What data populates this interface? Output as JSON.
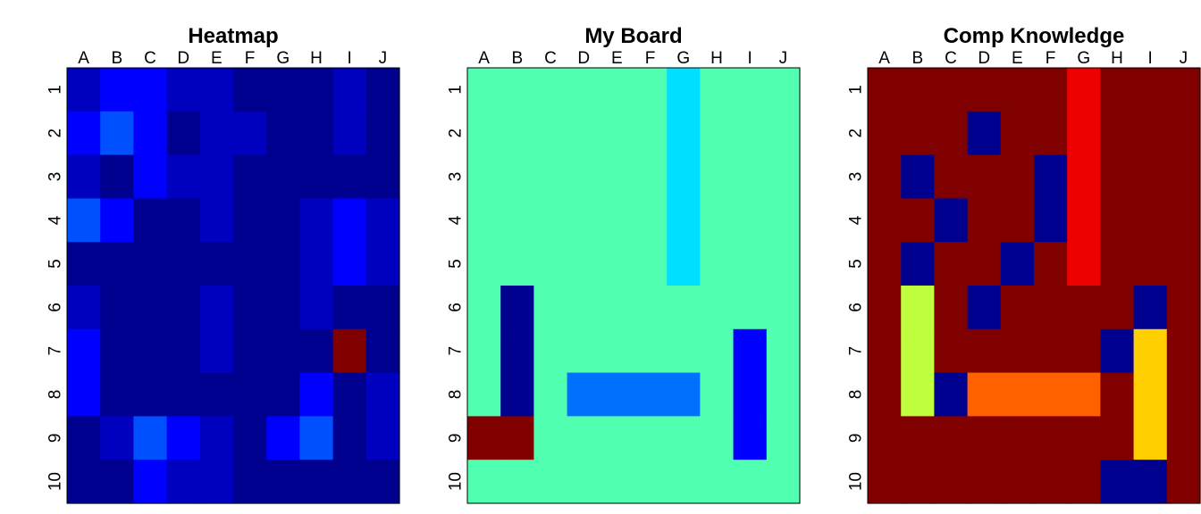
{
  "chart_data": [
    {
      "type": "heatmap",
      "title": "Heatmap",
      "columns": [
        "A",
        "B",
        "C",
        "D",
        "E",
        "F",
        "G",
        "H",
        "I",
        "J"
      ],
      "rows": [
        "1",
        "2",
        "3",
        "4",
        "5",
        "6",
        "7",
        "8",
        "9",
        "10"
      ],
      "palette": [
        "#00008F",
        "#0000BF",
        "#0000FF",
        "#0050FF",
        "#800000"
      ],
      "cells": [
        [
          1,
          2,
          2,
          1,
          1,
          0,
          0,
          0,
          1,
          0
        ],
        [
          2,
          3,
          2,
          0,
          1,
          1,
          0,
          0,
          1,
          0
        ],
        [
          1,
          0,
          2,
          1,
          1,
          0,
          0,
          0,
          0,
          0
        ],
        [
          3,
          2,
          0,
          0,
          1,
          0,
          0,
          1,
          2,
          1
        ],
        [
          0,
          0,
          0,
          0,
          0,
          0,
          0,
          1,
          2,
          1
        ],
        [
          1,
          0,
          0,
          0,
          1,
          0,
          0,
          1,
          0,
          0
        ],
        [
          2,
          0,
          0,
          0,
          1,
          0,
          0,
          0,
          4,
          0
        ],
        [
          2,
          0,
          0,
          0,
          0,
          0,
          0,
          2,
          0,
          1
        ],
        [
          0,
          1,
          3,
          2,
          1,
          0,
          2,
          3,
          0,
          1
        ],
        [
          0,
          0,
          2,
          1,
          1,
          0,
          0,
          0,
          0,
          0
        ]
      ]
    },
    {
      "type": "heatmap",
      "title": "My Board",
      "columns": [
        "A",
        "B",
        "C",
        "D",
        "E",
        "F",
        "G",
        "H",
        "I",
        "J"
      ],
      "rows": [
        "1",
        "2",
        "3",
        "4",
        "5",
        "6",
        "7",
        "8",
        "9",
        "10"
      ],
      "palette": [
        "#50FFB0",
        "#00008F",
        "#0000FF",
        "#0070FF",
        "#00DFFF",
        "#800000"
      ],
      "cells": [
        [
          0,
          0,
          0,
          0,
          0,
          0,
          4,
          0,
          0,
          0
        ],
        [
          0,
          0,
          0,
          0,
          0,
          0,
          4,
          0,
          0,
          0
        ],
        [
          0,
          0,
          0,
          0,
          0,
          0,
          4,
          0,
          0,
          0
        ],
        [
          0,
          0,
          0,
          0,
          0,
          0,
          4,
          0,
          0,
          0
        ],
        [
          0,
          0,
          0,
          0,
          0,
          0,
          4,
          0,
          0,
          0
        ],
        [
          0,
          1,
          0,
          0,
          0,
          0,
          0,
          0,
          0,
          0
        ],
        [
          0,
          1,
          0,
          0,
          0,
          0,
          0,
          0,
          2,
          0
        ],
        [
          0,
          1,
          0,
          3,
          3,
          3,
          3,
          0,
          2,
          0
        ],
        [
          5,
          5,
          0,
          0,
          0,
          0,
          0,
          0,
          2,
          0
        ],
        [
          0,
          0,
          0,
          0,
          0,
          0,
          0,
          0,
          0,
          0
        ]
      ]
    },
    {
      "type": "heatmap",
      "title": "Comp Knowledge",
      "columns": [
        "A",
        "B",
        "C",
        "D",
        "E",
        "F",
        "G",
        "H",
        "I",
        "J"
      ],
      "rows": [
        "1",
        "2",
        "3",
        "4",
        "5",
        "6",
        "7",
        "8",
        "9",
        "10"
      ],
      "palette": [
        "#800000",
        "#00008F",
        "#EF0000",
        "#BFFF40",
        "#FF6000",
        "#FFCF00"
      ],
      "cells": [
        [
          0,
          0,
          0,
          0,
          0,
          0,
          2,
          0,
          0,
          0
        ],
        [
          0,
          0,
          0,
          1,
          0,
          0,
          2,
          0,
          0,
          0
        ],
        [
          0,
          1,
          0,
          0,
          0,
          1,
          2,
          0,
          0,
          0
        ],
        [
          0,
          0,
          1,
          0,
          0,
          1,
          2,
          0,
          0,
          0
        ],
        [
          0,
          1,
          0,
          0,
          1,
          0,
          2,
          0,
          0,
          0
        ],
        [
          0,
          3,
          0,
          1,
          0,
          0,
          0,
          0,
          1,
          0
        ],
        [
          0,
          3,
          0,
          0,
          0,
          0,
          0,
          1,
          5,
          0
        ],
        [
          0,
          3,
          1,
          4,
          4,
          4,
          4,
          0,
          5,
          0
        ],
        [
          0,
          0,
          0,
          0,
          0,
          0,
          0,
          0,
          5,
          0
        ],
        [
          0,
          0,
          0,
          0,
          0,
          0,
          0,
          1,
          1,
          0
        ]
      ]
    }
  ]
}
